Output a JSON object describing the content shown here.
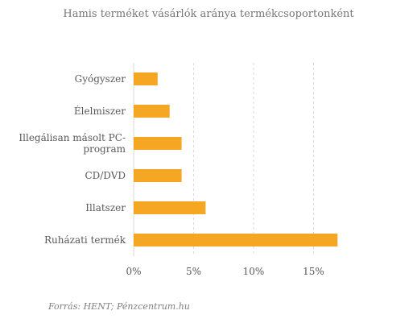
{
  "source": "Forrás: HENT; Pénzcentrum.hu",
  "chart_data": {
    "type": "bar",
    "orientation": "horizontal",
    "title": "Hamis terméket vásárlók aránya termékcsoportonként",
    "categories": [
      [
        "Gyógyszer"
      ],
      [
        "Élelmiszer"
      ],
      [
        "Illegálisan másolt PC-",
        "program"
      ],
      [
        "CD/DVD"
      ],
      [
        "Illatszer"
      ],
      [
        "Ruházati termék"
      ]
    ],
    "values": [
      2,
      3,
      4,
      4,
      6,
      17
    ],
    "unit": "%",
    "xlim": [
      0,
      20
    ],
    "ticks": [
      0,
      5,
      10,
      15
    ],
    "tick_labels": [
      "0%",
      "5%",
      "10%",
      "15%"
    ],
    "grid": "vertical, dashed",
    "legend": "none",
    "bar_color": "#F5A623",
    "grid_color": "#d9d9d9"
  }
}
